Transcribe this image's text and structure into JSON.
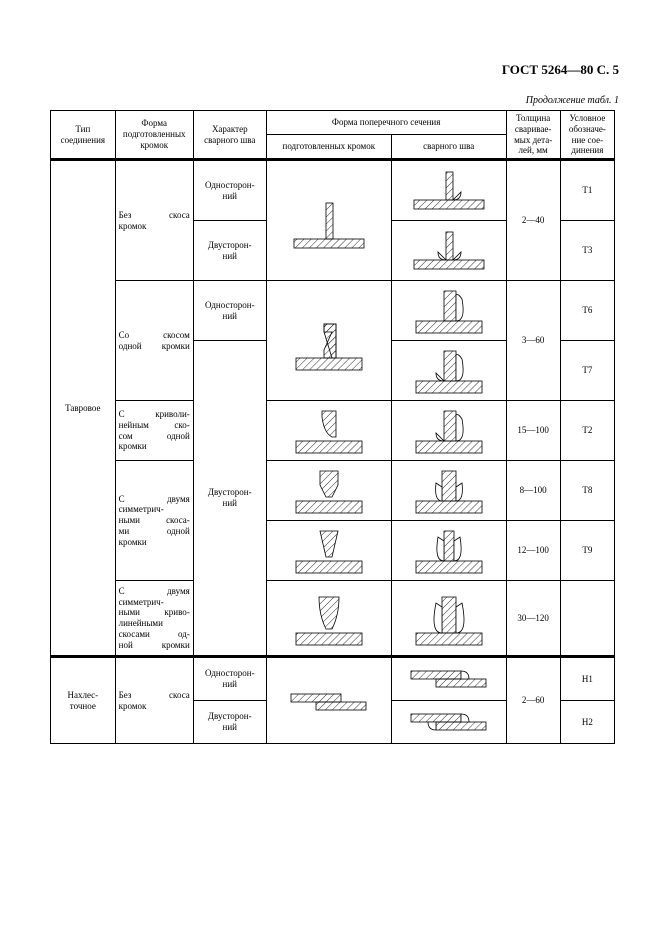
{
  "header": "ГОСТ 5264—80 С. 5",
  "caption": "Продолжение табл. 1",
  "columns": {
    "c1": "Тип\nсоединения",
    "c2": "Форма\nподготовленных\nкромок",
    "c3": "Характер\nсварного шва",
    "c4_group": "Форма поперечного сечения",
    "c4": "подготовленных кромок",
    "c5": "сварного шва",
    "c6": "Толщина\nсваривае-\nмых дета-\nлей, мм",
    "c7": "Условное\nобозначе-\nние сое-\nдинения"
  },
  "joint_types": {
    "tee": "Тавровое",
    "lap": "Нахлес-\nточное"
  },
  "edge_forms": {
    "no_bevel": "Без скоса\nкромок",
    "one_bevel": "Со скосом\nодной кромки",
    "curved_bevel": "С криволи-\nнейным ско-\nсом одной\nкромки",
    "two_sym": "С двумя\nсимметрич-\nными скоса-\nми одной\nкромки",
    "two_sym_curved": "С двумя\nсимметрич-\nными криво-\nлинейными\nскосами од-\nной кромки",
    "lap_no_bevel": "Без скоса\nкромок"
  },
  "weld_char": {
    "one_side": "Односторон-\nний",
    "two_side": "Двусторон-\nний"
  },
  "rows": {
    "t1": {
      "thickness": "2—40",
      "code": "Т1"
    },
    "t3": {
      "thickness": "",
      "code": "Т3"
    },
    "t6": {
      "thickness": "3—60",
      "code": "Т6"
    },
    "t7": {
      "thickness": "",
      "code": "Т7"
    },
    "t2": {
      "thickness": "15—100",
      "code": "Т2"
    },
    "t8": {
      "thickness": "8—100",
      "code": "Т8"
    },
    "t9": {
      "thickness": "12—100",
      "code": "Т9"
    },
    "t_curve2": {
      "thickness": "30—120",
      "code": ""
    },
    "h1": {
      "thickness": "2—60",
      "code": "Н1"
    },
    "h2": {
      "thickness": "",
      "code": "Н2"
    }
  },
  "colors": {
    "stroke": "#000000",
    "fill": "#ffffff",
    "hatch": "#000000"
  }
}
